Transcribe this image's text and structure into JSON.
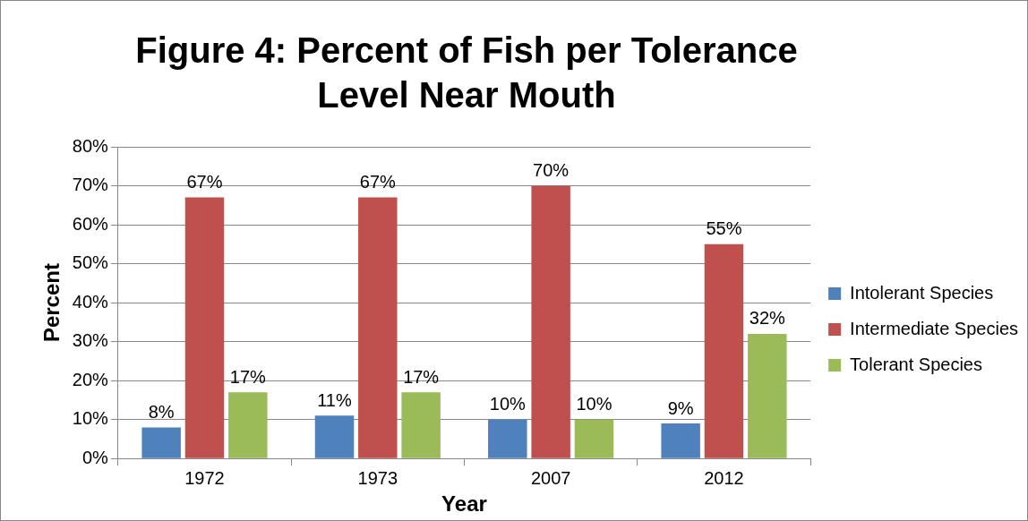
{
  "chart_data": {
    "type": "bar",
    "title": "Figure 4: Percent of Fish per Tolerance Level Near Mouth",
    "xlabel": "Year",
    "ylabel": "Percent",
    "categories": [
      "1972",
      "1973",
      "2007",
      "2012"
    ],
    "series": [
      {
        "name": "Intolerant Species",
        "color": "#4f81bd",
        "values": [
          8,
          11,
          10,
          9
        ],
        "value_labels": [
          "8%",
          "11%",
          "10%",
          "9%"
        ]
      },
      {
        "name": "Intermediate Species",
        "color": "#c0504d",
        "values": [
          67,
          67,
          70,
          55
        ],
        "value_labels": [
          "67%",
          "67%",
          "70%",
          "55%"
        ]
      },
      {
        "name": "Tolerant Species",
        "color": "#9bbb59",
        "values": [
          17,
          17,
          10,
          32
        ],
        "value_labels": [
          "17%",
          "17%",
          "10%",
          "32%"
        ]
      }
    ],
    "ylim": [
      0,
      80
    ],
    "yticks": [
      {
        "value": 0,
        "label": "0%"
      },
      {
        "value": 10,
        "label": "10%"
      },
      {
        "value": 20,
        "label": "20%"
      },
      {
        "value": 30,
        "label": "30%"
      },
      {
        "value": 40,
        "label": "40%"
      },
      {
        "value": 50,
        "label": "50%"
      },
      {
        "value": 60,
        "label": "60%"
      },
      {
        "value": 70,
        "label": "70%"
      },
      {
        "value": 80,
        "label": "80%"
      }
    ],
    "grid": "y",
    "legend": "right"
  }
}
